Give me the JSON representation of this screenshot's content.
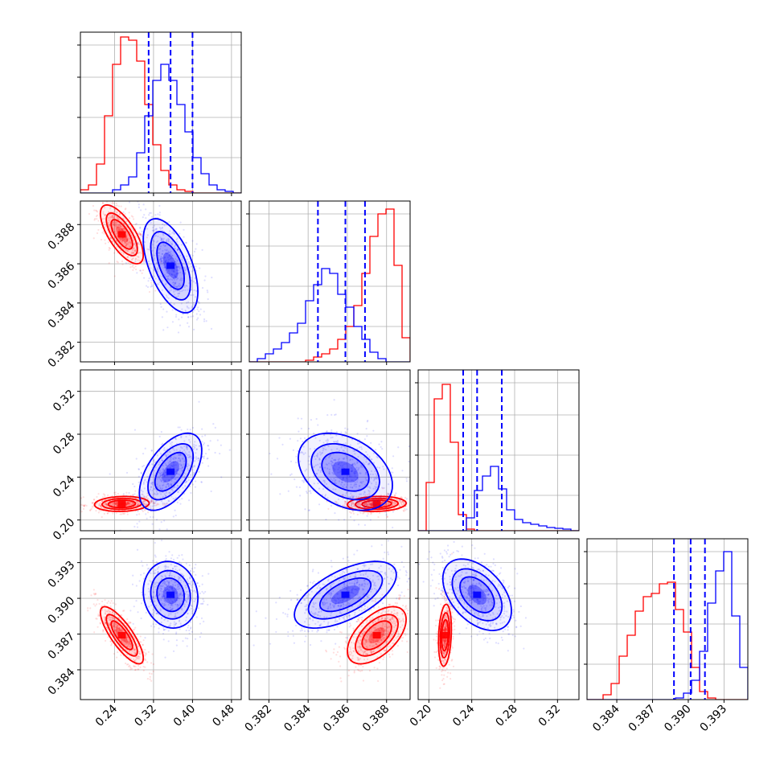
{
  "chart_data": {
    "type": "corner",
    "title": "",
    "grid": true,
    "colors": {
      "series_a": "#ff0000",
      "series_b": "#0000ff"
    },
    "parameters": [
      {
        "range": [
          0.17,
          0.5
        ],
        "ticks": [
          0.24,
          0.32,
          0.4,
          0.48
        ],
        "tick_labels": [
          "0.24",
          "0.32",
          "0.40",
          "0.48"
        ]
      },
      {
        "range": [
          0.381,
          0.3892
        ],
        "ticks": [
          0.382,
          0.384,
          0.386,
          0.388
        ],
        "tick_labels": [
          "0.382",
          "0.384",
          "0.386",
          "0.388"
        ]
      },
      {
        "range": [
          0.19,
          0.34
        ],
        "ticks": [
          0.2,
          0.24,
          0.28,
          0.32
        ],
        "tick_labels": [
          "0.20",
          "0.24",
          "0.28",
          "0.32"
        ]
      },
      {
        "range": [
          0.3815,
          0.395
        ],
        "ticks": [
          0.384,
          0.387,
          0.39,
          0.393
        ],
        "tick_labels": [
          "0.384",
          "0.387",
          "0.390",
          "0.393"
        ]
      }
    ],
    "quantiles": [
      [
        0.31,
        0.355,
        0.4
      ],
      [
        0.3845,
        0.3859,
        0.3869
      ],
      [
        0.232,
        0.245,
        0.268
      ],
      [
        0.3888,
        0.3902,
        0.3914
      ]
    ],
    "series": [
      {
        "key": "red",
        "color": "#ff0000",
        "means": [
          0.255,
          0.3875,
          0.215,
          0.3869
        ],
        "hist": [
          [
            0.02,
            0.05,
            0.18,
            0.48,
            0.8,
            0.97,
            0.95,
            0.82,
            0.55,
            0.3,
            0.14,
            0.05,
            0.02,
            0.01,
            0,
            0,
            0,
            0,
            0,
            0
          ],
          [
            0,
            0,
            0,
            0,
            0,
            0,
            0,
            0.01,
            0.03,
            0.05,
            0.08,
            0.14,
            0.22,
            0.35,
            0.55,
            0.78,
            0.92,
            0.95,
            0.6,
            0.15
          ],
          [
            0,
            0.3,
            0.82,
            0.91,
            0.55,
            0.1,
            0.01,
            0,
            0,
            0,
            0,
            0,
            0,
            0,
            0,
            0,
            0,
            0,
            0,
            0
          ],
          [
            0,
            0,
            0.03,
            0.1,
            0.27,
            0.4,
            0.55,
            0.64,
            0.66,
            0.72,
            0.73,
            0.56,
            0.42,
            0.2,
            0.05,
            0.01,
            0,
            0,
            0,
            0
          ]
        ],
        "pairs": [
          {
            "pair": [
              1,
              0
            ],
            "sx": 0.022,
            "sy": 0.00075,
            "rho": -0.7
          },
          {
            "pair": [
              2,
              0
            ],
            "sx": 0.028,
            "sy": 0.0035,
            "rho": 0.1
          },
          {
            "pair": [
              2,
              1
            ],
            "sx": 0.00075,
            "sy": 0.0035,
            "rho": 0.1
          },
          {
            "pair": [
              3,
              0
            ],
            "sx": 0.022,
            "sy": 0.0012,
            "rho": -0.8
          },
          {
            "pair": [
              3,
              1
            ],
            "sx": 0.00075,
            "sy": 0.0012,
            "rho": 0.55
          },
          {
            "pair": [
              3,
              2
            ],
            "sx": 0.003,
            "sy": 0.0013,
            "rho": 0.2
          }
        ]
      },
      {
        "key": "blue",
        "color": "#0000ff",
        "means": [
          0.355,
          0.3859,
          0.245,
          0.3903
        ],
        "hist": [
          [
            0,
            0,
            0,
            0,
            0.02,
            0.05,
            0.1,
            0.25,
            0.48,
            0.7,
            0.8,
            0.7,
            0.55,
            0.38,
            0.22,
            0.12,
            0.05,
            0.02,
            0.01,
            0
          ],
          [
            0,
            0.02,
            0.05,
            0.08,
            0.12,
            0.18,
            0.24,
            0.38,
            0.48,
            0.58,
            0.55,
            0.42,
            0.34,
            0.22,
            0.14,
            0.06,
            0.02,
            0,
            0,
            0
          ],
          [
            0,
            0,
            0,
            0,
            0,
            0,
            0.08,
            0.25,
            0.34,
            0.4,
            0.26,
            0.13,
            0.07,
            0.05,
            0.04,
            0.03,
            0.02,
            0.015,
            0.01,
            0
          ],
          [
            0,
            0,
            0,
            0,
            0,
            0,
            0,
            0,
            0,
            0,
            0,
            0.01,
            0.04,
            0.12,
            0.3,
            0.6,
            0.8,
            0.92,
            0.52,
            0.2
          ]
        ],
        "pairs": [
          {
            "pair": [
              1,
              0
            ],
            "sx": 0.028,
            "sy": 0.0012,
            "rho": -0.55
          },
          {
            "pair": [
              2,
              0
            ],
            "sx": 0.032,
            "sy": 0.018,
            "rho": 0.55
          },
          {
            "pair": [
              2,
              1
            ],
            "sx": 0.0012,
            "sy": 0.018,
            "rho": -0.35
          },
          {
            "pair": [
              3,
              0
            ],
            "sx": 0.028,
            "sy": 0.0014,
            "rho": -0.1
          },
          {
            "pair": [
              3,
              1
            ],
            "sx": 0.0013,
            "sy": 0.0014,
            "rho": 0.6
          },
          {
            "pair": [
              3,
              2
            ],
            "sx": 0.016,
            "sy": 0.0015,
            "rho": -0.45
          }
        ]
      }
    ]
  }
}
